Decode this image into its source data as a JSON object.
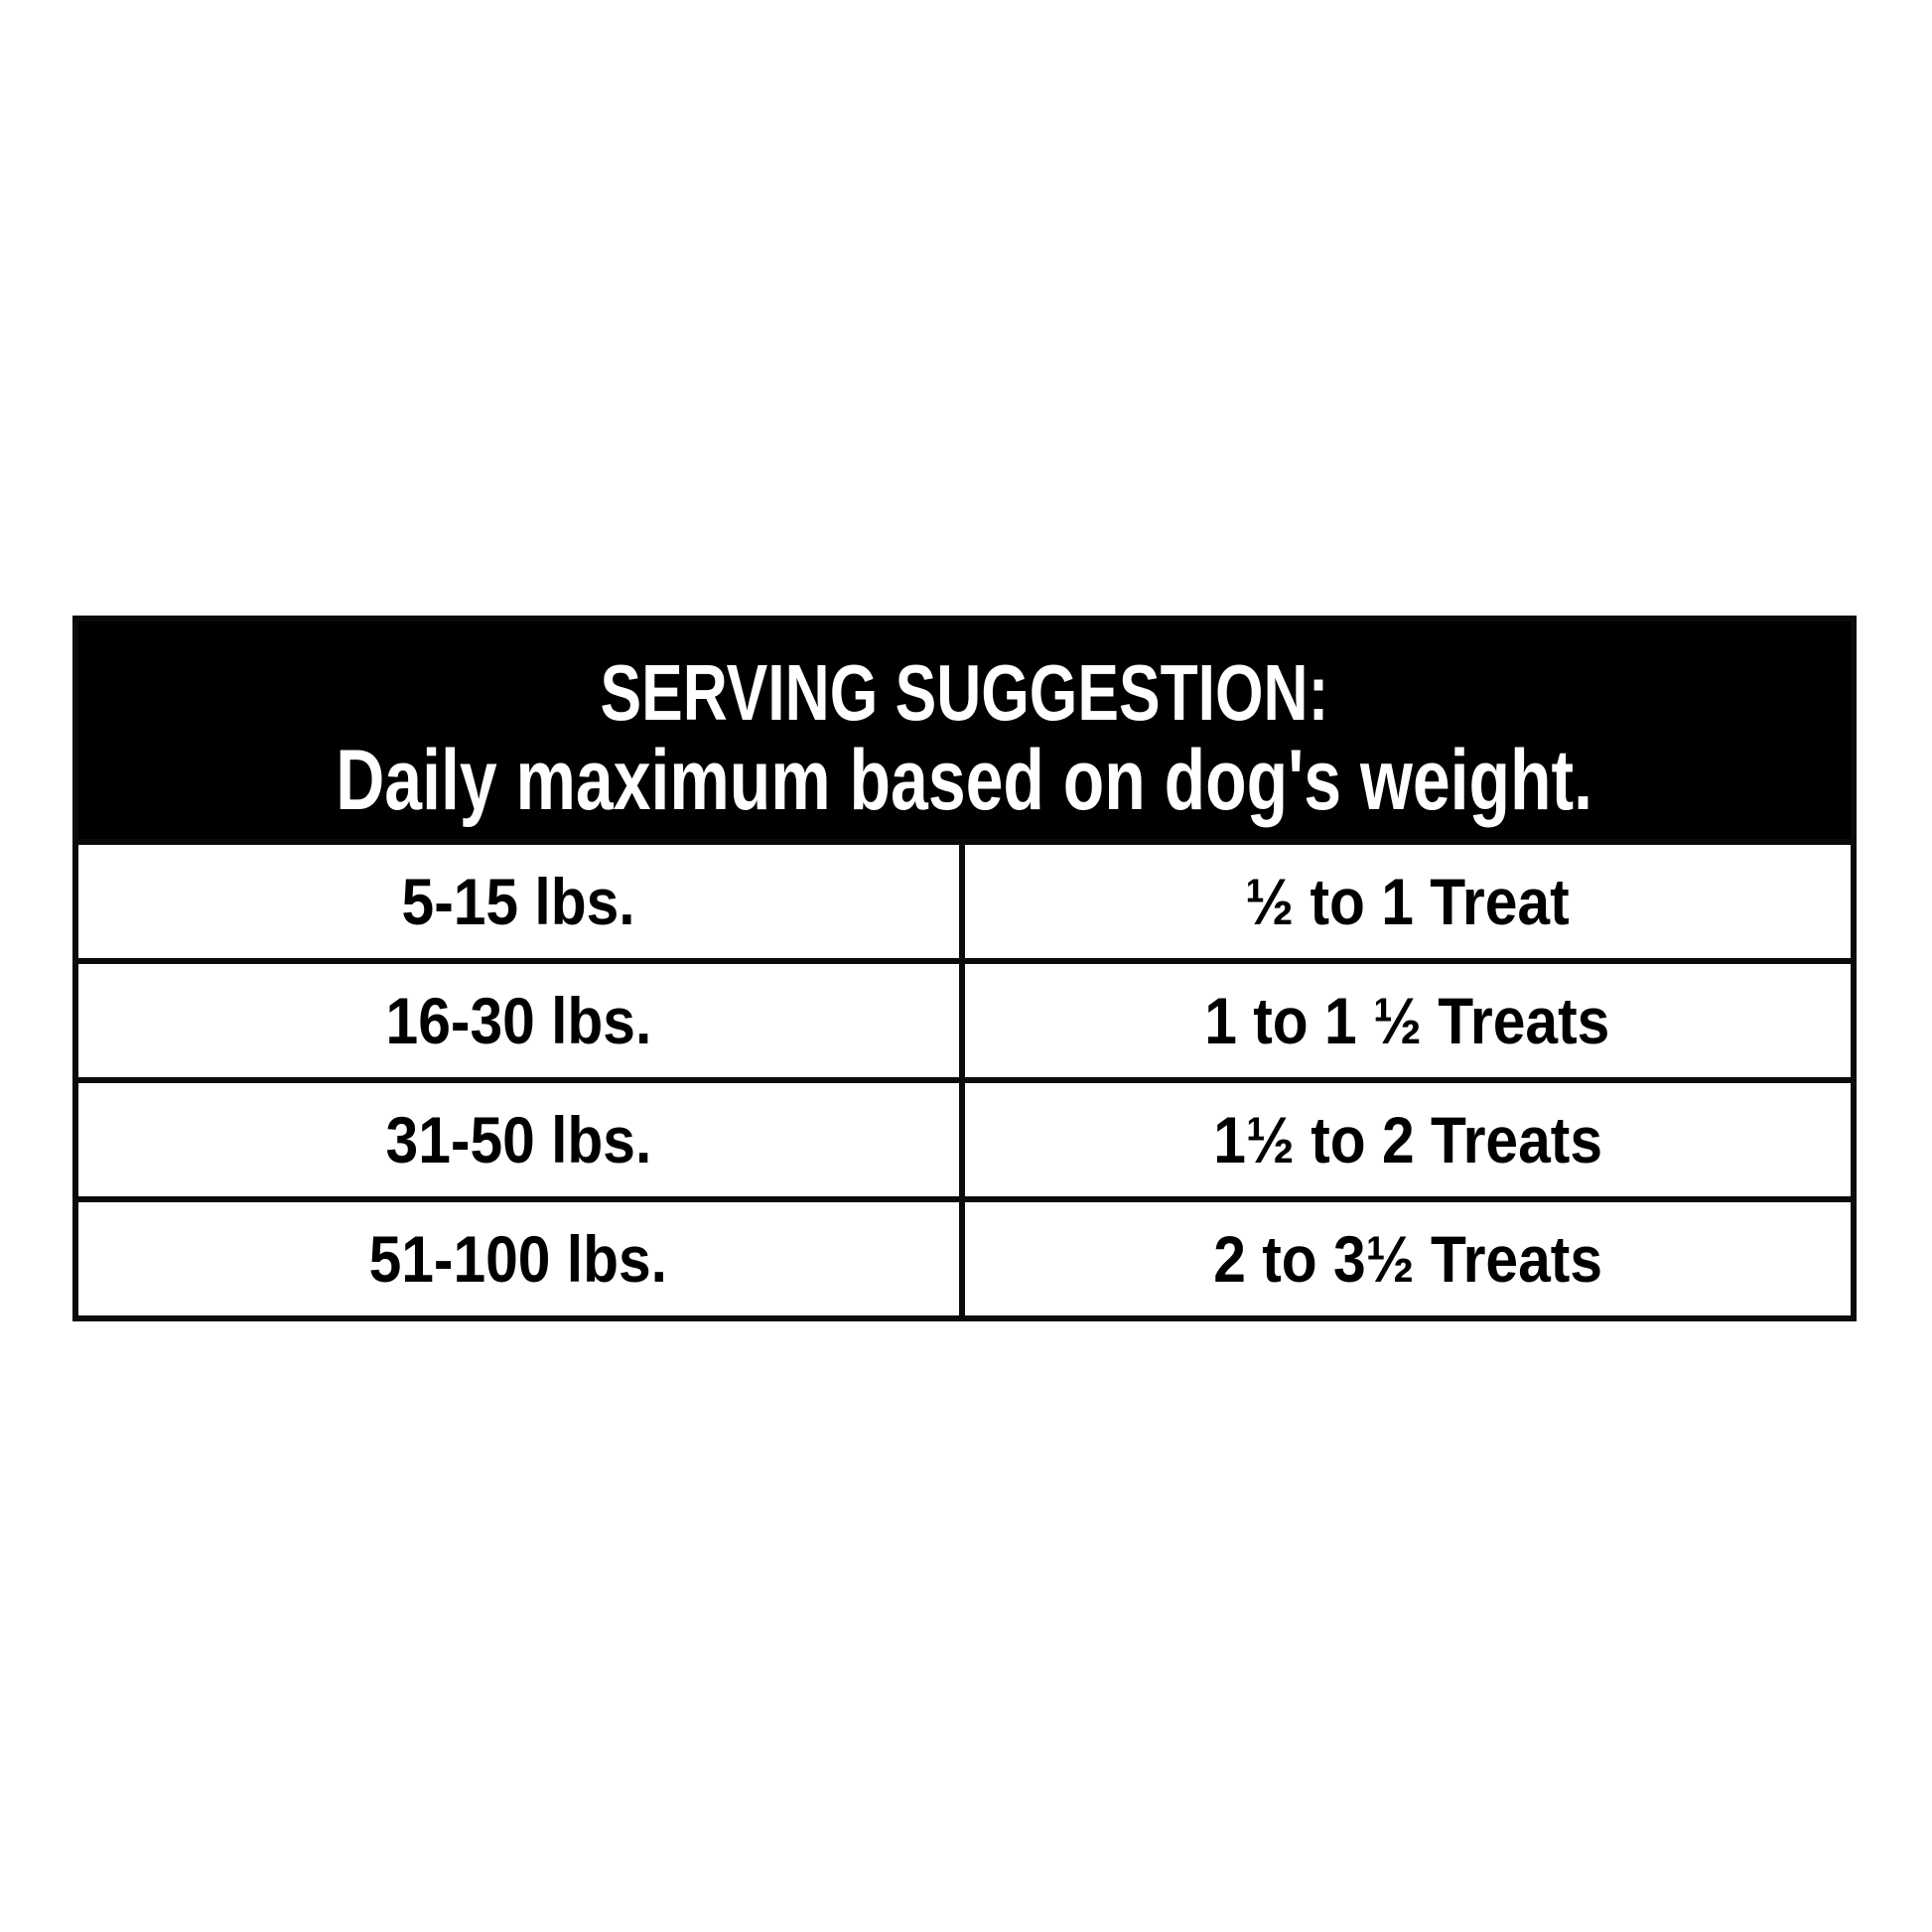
{
  "table": {
    "header": {
      "line1": "SERVING SUGGESTION:",
      "line2": "Daily maximum based on dog's weight."
    },
    "rows": [
      {
        "weight": "5-15 lbs.",
        "treats": "½ to 1 Treat"
      },
      {
        "weight": "16-30 lbs.",
        "treats": "1 to 1 ½ Treats"
      },
      {
        "weight": "31-50 lbs.",
        "treats": "1½ to 2 Treats"
      },
      {
        "weight": "51-100 lbs.",
        "treats": "2 to 3½ Treats"
      }
    ],
    "colors": {
      "header_bg": "#000000",
      "header_text": "#ffffff",
      "border": "#0b0b0b",
      "body_text": "#000000",
      "page_bg": "#ffffff"
    }
  }
}
